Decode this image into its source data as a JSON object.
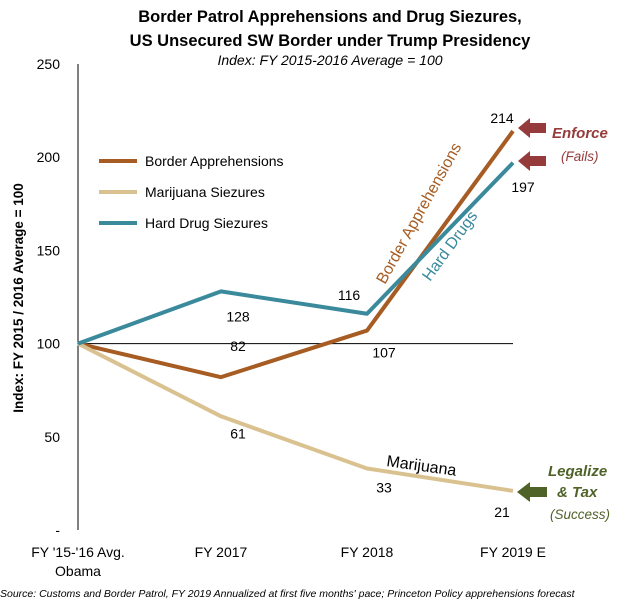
{
  "chart_data": {
    "type": "line",
    "title": "Border Patrol Apprehensions and Drug Siezures,",
    "title_line2": "US Unsecured SW Border under Trump Presidency",
    "subtitle": "Index: FY 2015-2016 Average = 100",
    "ylabel": "Index: FY 2015 / 2016 Average = 100",
    "ylim": [
      0,
      250
    ],
    "yticks": [
      "-",
      "50",
      "100",
      "150",
      "200",
      "250"
    ],
    "ytick_values": [
      0,
      50,
      100,
      150,
      200,
      250
    ],
    "categories": [
      "FY '15-'16 Avg.",
      "FY 2017",
      "FY 2018",
      "FY 2019 E"
    ],
    "category_sub": "Obama",
    "reference_line": 100,
    "series": [
      {
        "name": "Border Apprehensions",
        "color": "#a65c22",
        "values": [
          100,
          82,
          107,
          214
        ],
        "labels": [
          "",
          "82",
          "107",
          "214"
        ]
      },
      {
        "name": "Marijuana Siezures",
        "color": "#d9c28f",
        "values": [
          100,
          61,
          33,
          21
        ],
        "labels": [
          "",
          "61",
          "33",
          "21"
        ]
      },
      {
        "name": "Hard Drug Siezures",
        "color": "#3a8a9c",
        "values": [
          100,
          128,
          116,
          197
        ],
        "labels": [
          "",
          "128",
          "116",
          "197"
        ]
      }
    ],
    "annotations": {
      "border": "Border Apprehensions",
      "hard": "Hard Drugs",
      "marijuana": "Marijuana"
    },
    "callouts": {
      "enforce": "Enforce",
      "fails": "(Fails)",
      "legalize": "Legalize",
      "tax": "&  Tax",
      "success": "(Success)"
    },
    "colors": {
      "enforce": "#963b3b",
      "legalize": "#4f6228"
    },
    "source": "Source: Customs and Border Patrol, FY 2019 Annualized at first five months' pace; Princeton Policy apprehensions forecast"
  }
}
